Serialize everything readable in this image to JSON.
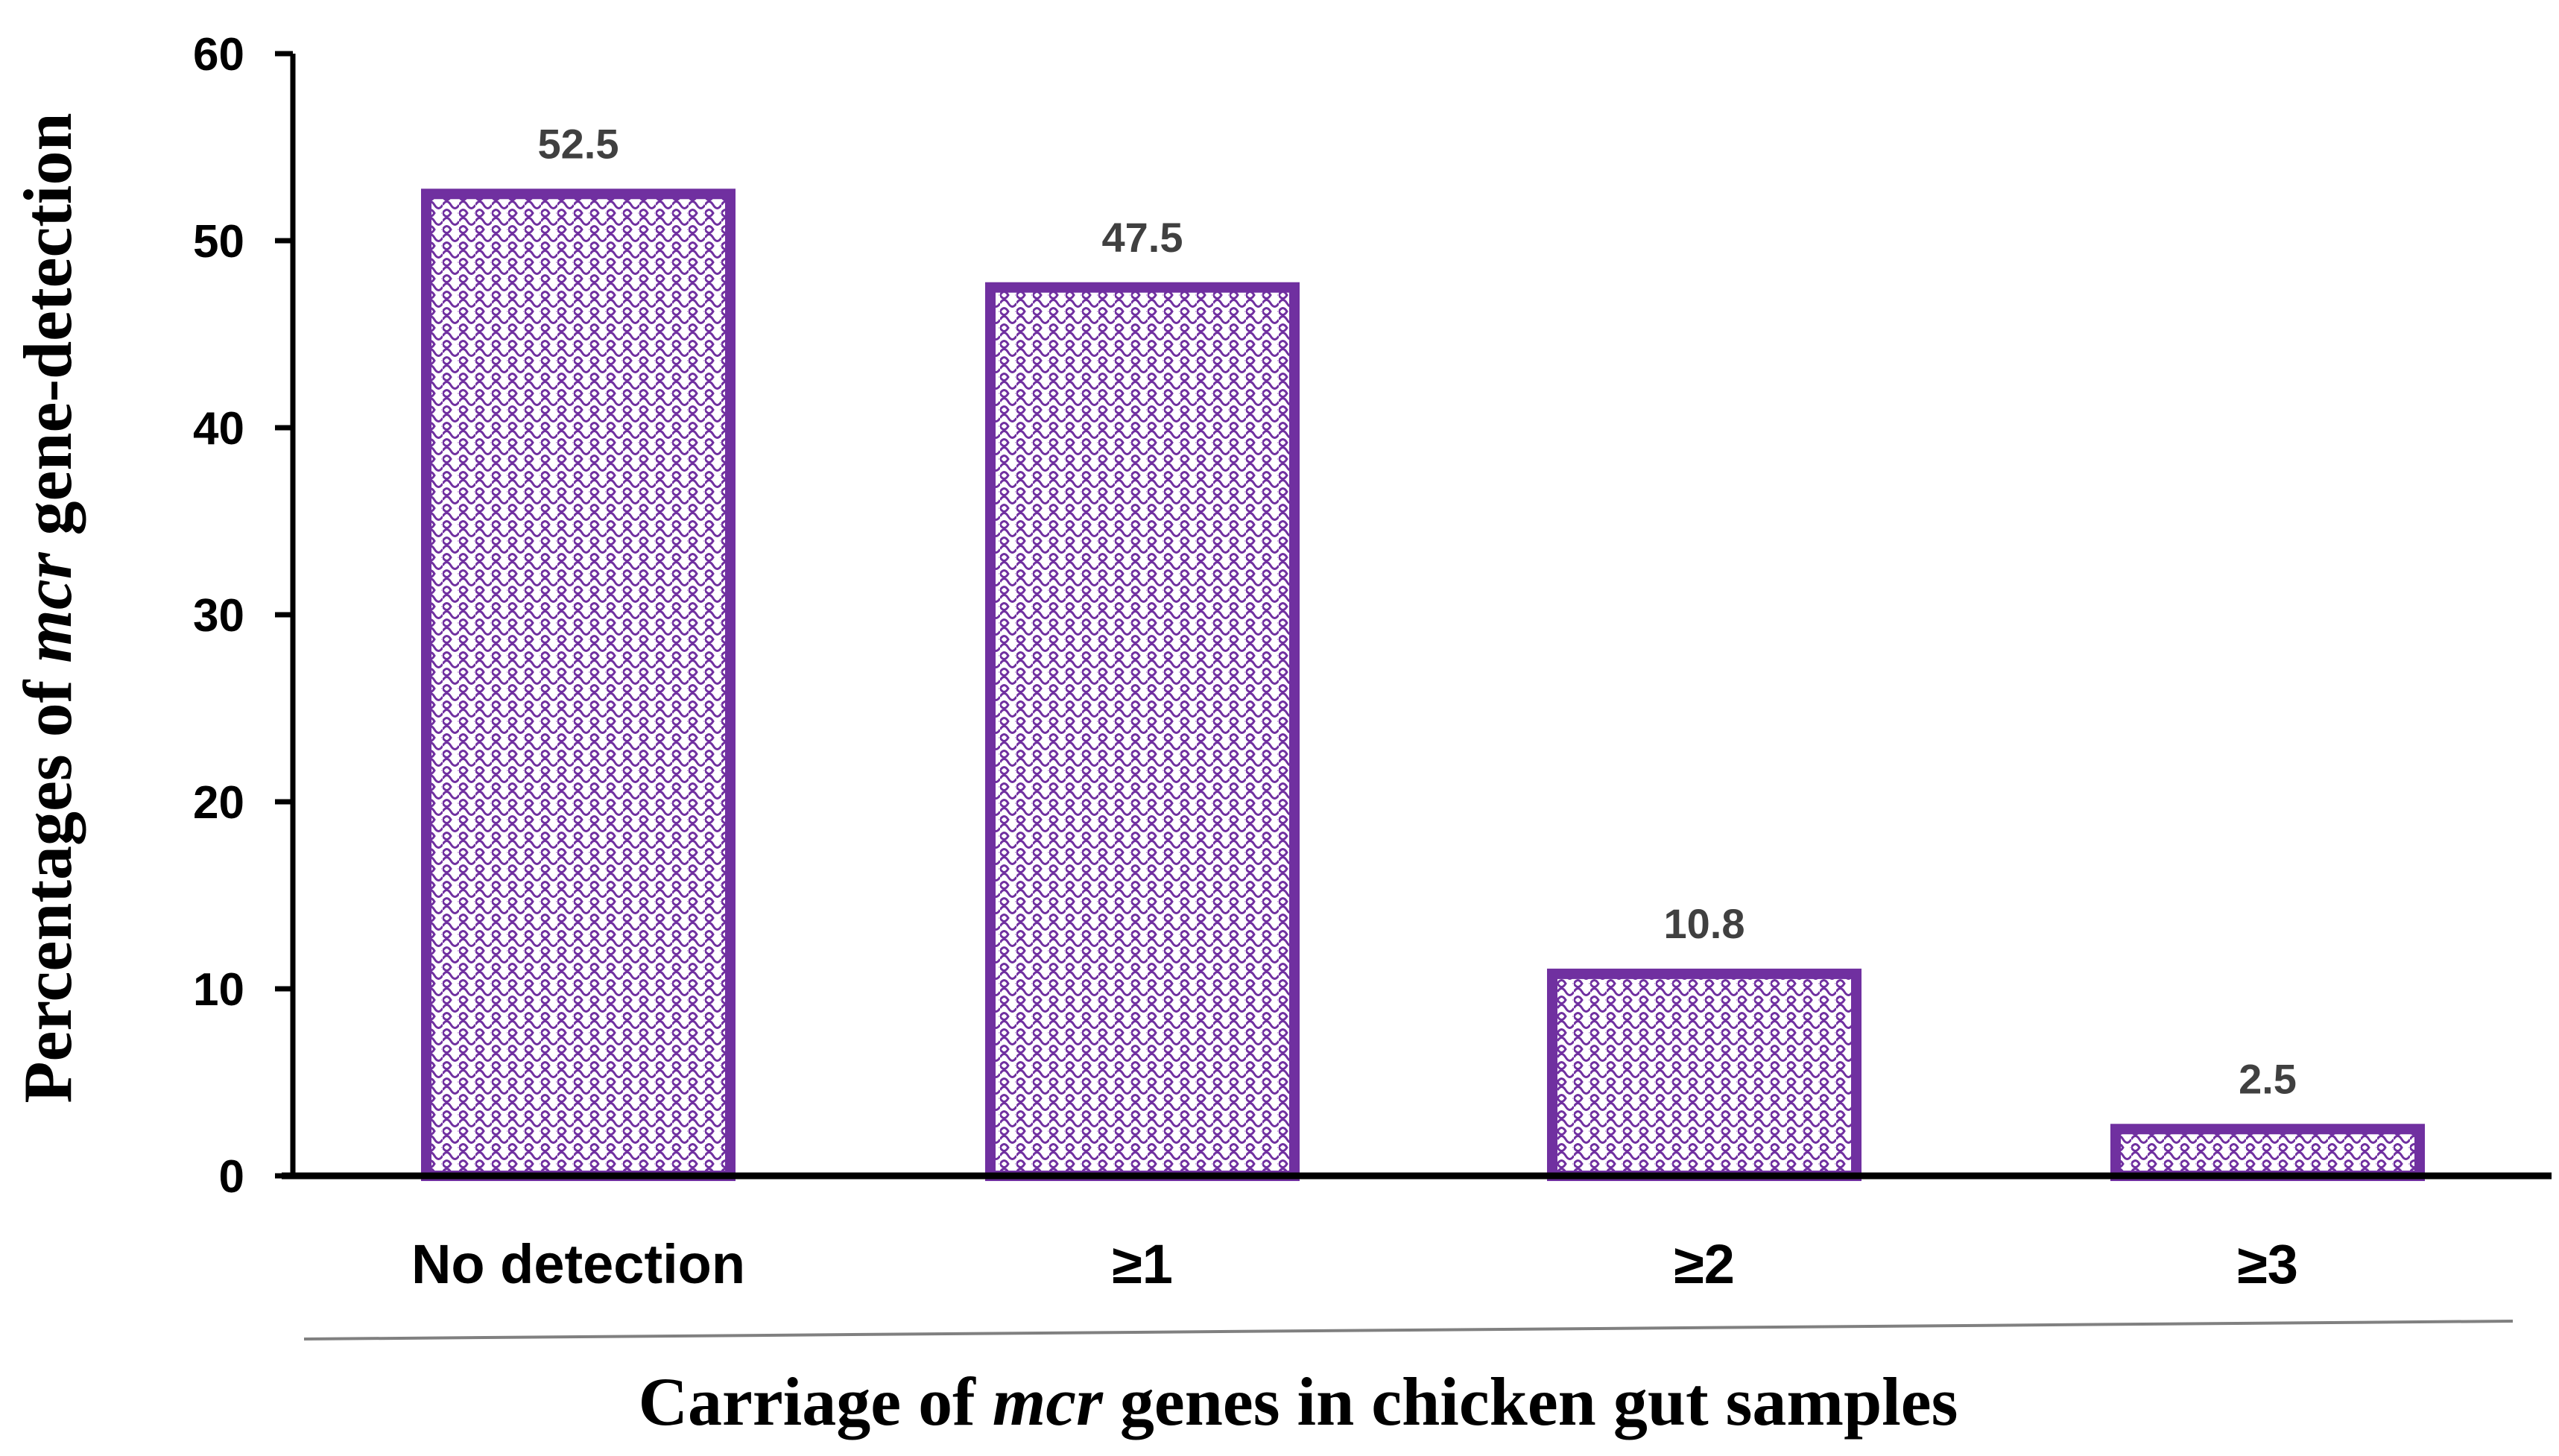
{
  "chart_data": {
    "type": "bar",
    "title": "",
    "categories": [
      "No detection",
      "≥1",
      "≥2",
      "≥3"
    ],
    "values": [
      52.5,
      47.5,
      10.8,
      2.5
    ],
    "data_labels": [
      "52.5",
      "47.5",
      "10.8",
      "2.5"
    ],
    "ylim": [
      0,
      60
    ],
    "yticks": [
      0,
      10,
      20,
      30,
      40,
      50,
      60
    ],
    "ytick_labels": [
      "0",
      "10",
      "20",
      "30",
      "40",
      "50",
      "60"
    ],
    "ylabel": {
      "before": "Percentages of ",
      "italic": "mcr",
      "after": " gene-detection"
    },
    "xlabel": {
      "before": "Carriage of ",
      "italic": "mcr",
      "after": " genes in chicken gut samples"
    },
    "grid": false,
    "legend": "none",
    "bar_fill_pattern": "dotted-lattice",
    "colors": {
      "bar_outline": "#7030A0",
      "bar_pattern": "#7030A0",
      "bar_background": "#ffffff",
      "axis": "#000000",
      "text": "#000000",
      "data_label_text": "#404040",
      "separator": "#808080"
    }
  }
}
